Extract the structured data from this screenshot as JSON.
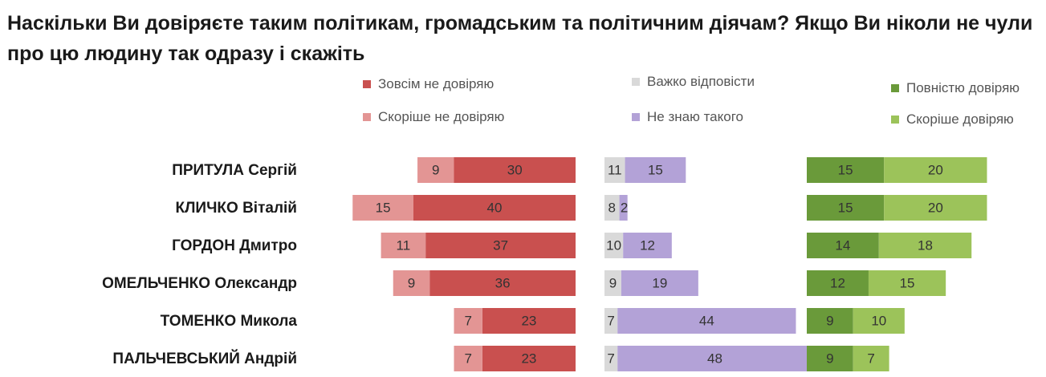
{
  "title": "Наскільки Ви довіряєте таким політикам, громадським та політичним діячам? Якщо Ви ніколи не чули про цю людину так одразу і скажіть",
  "colors": {
    "no_trust_at_all": "#c9504f",
    "rather_no_trust": "#e39594",
    "hard_to_say": "#d9d9d9",
    "dont_know": "#b3a2d7",
    "full_trust": "#6a9a3a",
    "rather_trust": "#9cc35a"
  },
  "legend": [
    {
      "key": "no_trust_at_all",
      "label": "Зовсім не довіряю",
      "icon": "square-swatch-icon"
    },
    {
      "key": "rather_no_trust",
      "label": "Скоріше не довіряю",
      "icon": "square-swatch-icon"
    },
    {
      "key": "hard_to_say",
      "label": "Важко відповісти",
      "icon": "square-swatch-icon"
    },
    {
      "key": "dont_know",
      "label": "Не знаю такого",
      "icon": "square-swatch-icon"
    },
    {
      "key": "full_trust",
      "label": "Повністю довіряю",
      "icon": "square-swatch-icon"
    },
    {
      "key": "rather_trust",
      "label": "Скоріше довіряю",
      "icon": "square-swatch-icon"
    }
  ],
  "chart_data": {
    "type": "bar",
    "orientation": "horizontal",
    "stacked": true,
    "title": "Наскільки Ви довіряєте таким політикам, громадським та політичним діячам? Якщо Ви ніколи не чули про цю людину так одразу і скажіть",
    "legend_position": "top",
    "grid": false,
    "categories": [
      "ПРИТУЛА Сергій",
      "КЛИЧКО Віталій",
      "ГОРДОН Дмитро",
      "ОМЕЛЬЧЕНКО Олександр",
      "ТОМЕНКО Микола",
      "ПАЛЬЧЕВСЬКИЙ Андрій"
    ],
    "series": [
      {
        "name": "Зовсім не довіряю",
        "values": [
          30,
          40,
          37,
          36,
          23,
          23
        ]
      },
      {
        "name": "Скоріше не довіряю",
        "values": [
          9,
          15,
          11,
          9,
          7,
          7
        ]
      },
      {
        "name": "Важко відповісти",
        "values": [
          11,
          8,
          10,
          9,
          7,
          7
        ]
      },
      {
        "name": "Не знаю такого",
        "values": [
          15,
          2,
          12,
          19,
          44,
          48
        ]
      },
      {
        "name": "Повністю довіряю",
        "values": [
          15,
          15,
          14,
          12,
          9,
          9
        ]
      },
      {
        "name": "Скоріше довіряю",
        "values": [
          20,
          20,
          18,
          15,
          10,
          7
        ]
      }
    ]
  }
}
